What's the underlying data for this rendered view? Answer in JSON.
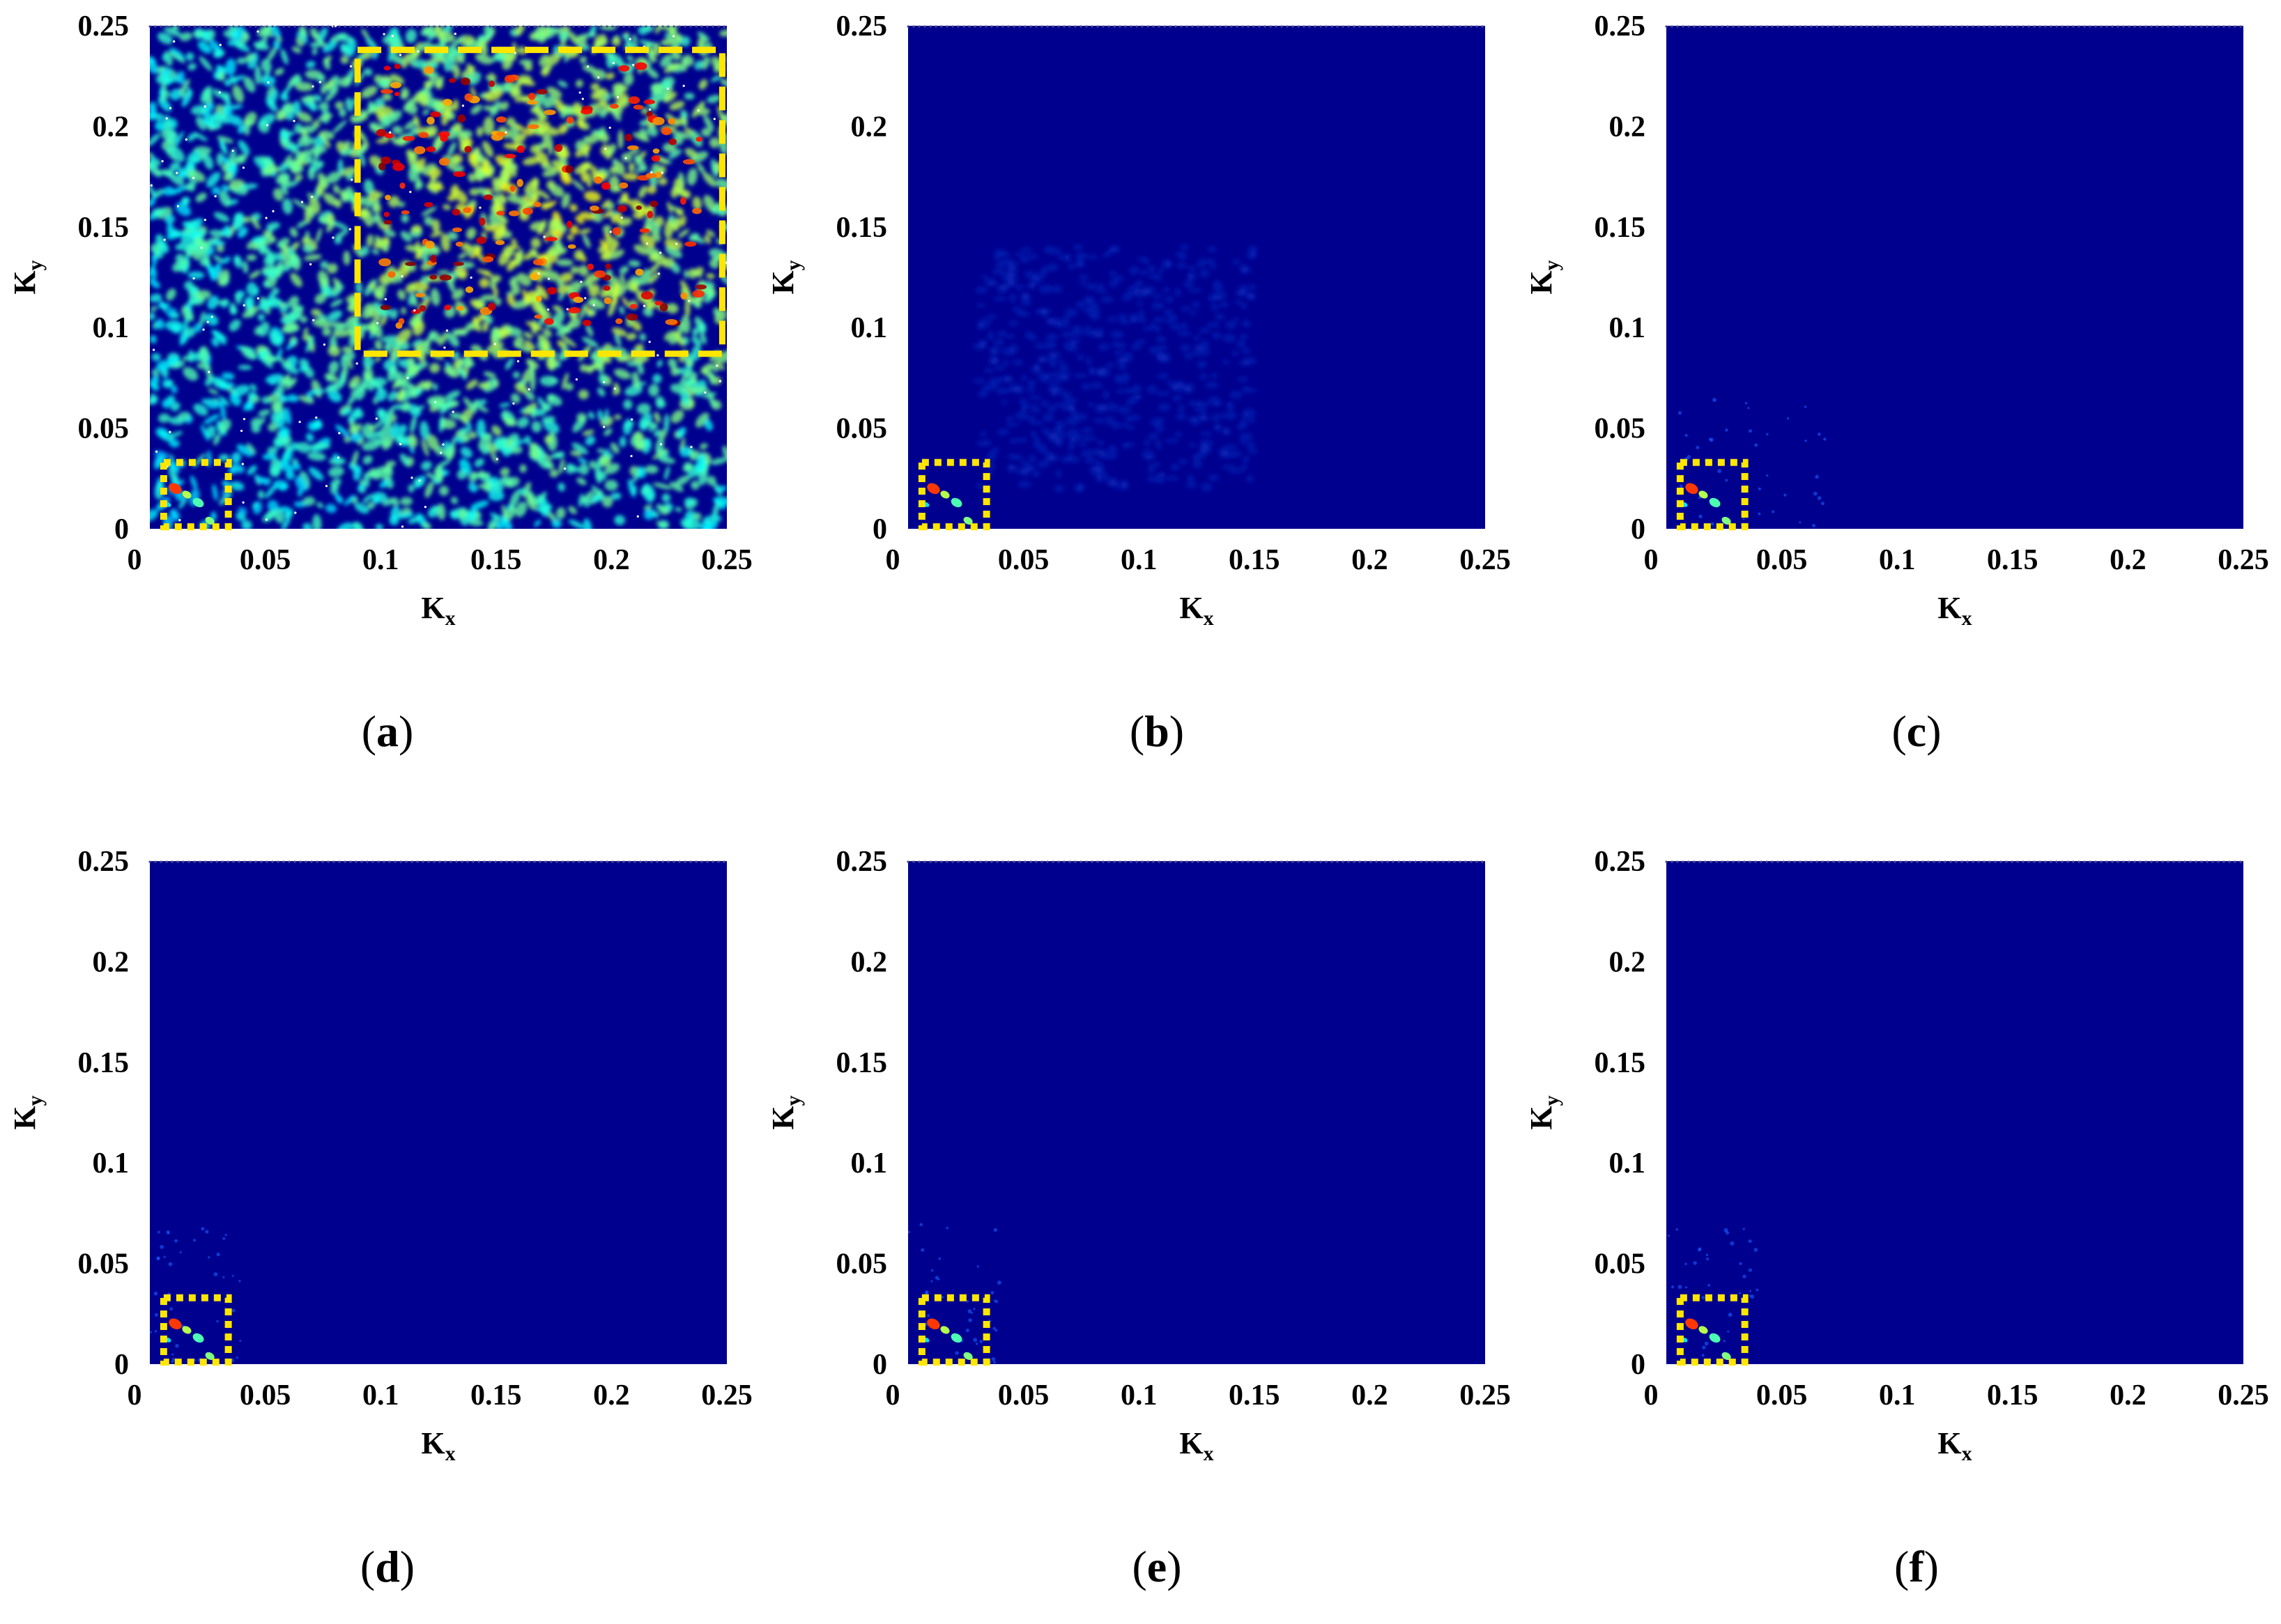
{
  "chart_data": [
    {
      "type": "heatmap",
      "caption": "(a)",
      "caption_letter": "a",
      "xlabel": "K",
      "xlabel_sub": "x",
      "ylabel": "K",
      "ylabel_sub": "y",
      "xlim": [
        0,
        0.25
      ],
      "ylim": [
        0,
        0.25
      ],
      "xticks": [
        "0",
        "0.05",
        "0.1",
        "0.15",
        "0.2",
        "0.25"
      ],
      "yticks": [
        "0",
        "0.05",
        "0.1",
        "0.15",
        "0.2",
        "0.25"
      ],
      "background_color": "#00008f",
      "energy_region": {
        "kx": [
          0.0,
          0.25
        ],
        "ky": [
          0.0,
          0.25
        ],
        "level": "high"
      },
      "highlight_boxes": [
        {
          "style": "dashed",
          "kx": [
            0.09,
            0.248
          ],
          "ky": [
            0.087,
            0.238
          ],
          "color": "#ffe600"
        },
        {
          "style": "dotted",
          "kx": [
            0.006,
            0.034
          ],
          "ky": [
            0.001,
            0.033
          ],
          "color": "#ffe600"
        }
      ]
    },
    {
      "type": "heatmap",
      "caption": "(b)",
      "caption_letter": "b",
      "xlabel": "K",
      "xlabel_sub": "x",
      "ylabel": "K",
      "ylabel_sub": "y",
      "xlim": [
        0,
        0.25
      ],
      "ylim": [
        0,
        0.25
      ],
      "xticks": [
        "0",
        "0.05",
        "0.1",
        "0.15",
        "0.2",
        "0.25"
      ],
      "yticks": [
        "0",
        "0.05",
        "0.1",
        "0.15",
        "0.2",
        "0.25"
      ],
      "background_color": "#00008f",
      "energy_region": {
        "kx": [
          0.03,
          0.15
        ],
        "ky": [
          0.02,
          0.14
        ],
        "level": "low"
      },
      "highlight_boxes": [
        {
          "style": "dotted",
          "kx": [
            0.006,
            0.034
          ],
          "ky": [
            0.001,
            0.033
          ],
          "color": "#ffe600"
        }
      ]
    },
    {
      "type": "heatmap",
      "caption": "(c)",
      "caption_letter": "c",
      "xlabel": "K",
      "xlabel_sub": "x",
      "ylabel": "K",
      "ylabel_sub": "y",
      "xlim": [
        0,
        0.25
      ],
      "ylim": [
        0,
        0.25
      ],
      "xticks": [
        "0",
        "0.05",
        "0.1",
        "0.15",
        "0.2",
        "0.25"
      ],
      "yticks": [
        "0",
        "0.05",
        "0.1",
        "0.15",
        "0.2",
        "0.25"
      ],
      "background_color": "#00008f",
      "energy_region": {
        "kx": [
          0.0,
          0.07
        ],
        "ky": [
          0.0,
          0.07
        ],
        "level": "trace"
      },
      "highlight_boxes": [
        {
          "style": "dotted",
          "kx": [
            0.006,
            0.034
          ],
          "ky": [
            0.001,
            0.033
          ],
          "color": "#ffe600"
        }
      ]
    },
    {
      "type": "heatmap",
      "caption": "(d)",
      "caption_letter": "d",
      "xlabel": "K",
      "xlabel_sub": "x",
      "ylabel": "K",
      "ylabel_sub": "y",
      "xlim": [
        0,
        0.25
      ],
      "ylim": [
        0,
        0.25
      ],
      "xticks": [
        "0",
        "0.05",
        "0.1",
        "0.15",
        "0.2",
        "0.25"
      ],
      "yticks": [
        "0",
        "0.05",
        "0.1",
        "0.15",
        "0.2",
        "0.25"
      ],
      "background_color": "#00008f",
      "energy_region": {
        "kx": [
          0.0,
          0.04
        ],
        "ky": [
          0.0,
          0.07
        ],
        "level": "trace"
      },
      "highlight_boxes": [
        {
          "style": "dotted",
          "kx": [
            0.006,
            0.034
          ],
          "ky": [
            0.001,
            0.033
          ],
          "color": "#ffe600"
        }
      ]
    },
    {
      "type": "heatmap",
      "caption": "(e)",
      "caption_letter": "e",
      "xlabel": "K",
      "xlabel_sub": "x",
      "ylabel": "K",
      "ylabel_sub": "y",
      "xlim": [
        0,
        0.25
      ],
      "ylim": [
        0,
        0.25
      ],
      "xticks": [
        "0",
        "0.05",
        "0.1",
        "0.15",
        "0.2",
        "0.25"
      ],
      "yticks": [
        "0",
        "0.05",
        "0.1",
        "0.15",
        "0.2",
        "0.25"
      ],
      "background_color": "#00008f",
      "energy_region": {
        "kx": [
          0.0,
          0.04
        ],
        "ky": [
          0.0,
          0.07
        ],
        "level": "trace"
      },
      "highlight_boxes": [
        {
          "style": "dotted",
          "kx": [
            0.006,
            0.034
          ],
          "ky": [
            0.001,
            0.033
          ],
          "color": "#ffe600"
        }
      ]
    },
    {
      "type": "heatmap",
      "caption": "(f)",
      "caption_letter": "f",
      "xlabel": "K",
      "xlabel_sub": "x",
      "ylabel": "K",
      "ylabel_sub": "y",
      "xlim": [
        0,
        0.25
      ],
      "ylim": [
        0,
        0.25
      ],
      "xticks": [
        "0",
        "0.05",
        "0.1",
        "0.15",
        "0.2",
        "0.25"
      ],
      "yticks": [
        "0",
        "0.05",
        "0.1",
        "0.15",
        "0.2",
        "0.25"
      ],
      "background_color": "#00008f",
      "energy_region": {
        "kx": [
          0.0,
          0.04
        ],
        "ky": [
          0.0,
          0.07
        ],
        "level": "trace"
      },
      "highlight_boxes": [
        {
          "style": "dotted",
          "kx": [
            0.006,
            0.034
          ],
          "ky": [
            0.001,
            0.033
          ],
          "color": "#ffe600"
        }
      ]
    }
  ],
  "colors": {
    "colormap_low": "#00008f",
    "colormap_mid": "#00c8ff",
    "colormap_high": "#ff2000",
    "box": "#ffe600"
  }
}
